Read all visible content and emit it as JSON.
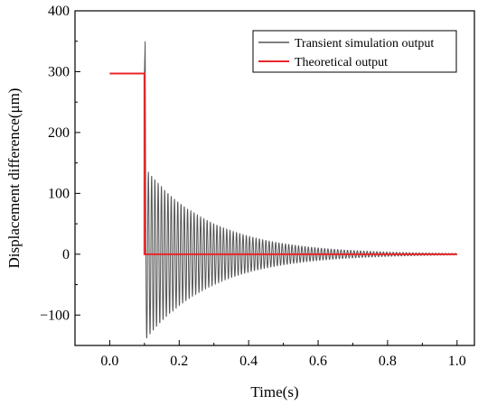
{
  "chart_data": {
    "type": "line",
    "title": "",
    "xlabel": "Time(s)",
    "ylabel": "Displacement difference(μm)",
    "xlim": [
      -0.1,
      1.05
    ],
    "ylim": [
      -150,
      400
    ],
    "xticks": [
      0.0,
      0.2,
      0.4,
      0.6,
      0.8,
      1.0
    ],
    "xtick_labels": [
      "0.0",
      "0.2",
      "0.4",
      "0.6",
      "0.8",
      "1.0"
    ],
    "yticks": [
      -100,
      0,
      100,
      200,
      300,
      400
    ],
    "ytick_labels": [
      "−100",
      "0",
      "100",
      "200",
      "300",
      "400"
    ],
    "grid": false,
    "legend_position": "top-right",
    "series": [
      {
        "name": "Transient simulation output",
        "color": "#555555",
        "model": {
          "initial_value": 297,
          "step_time": 0.1,
          "peak_value": 350,
          "oscillation_period": 0.0094,
          "initial_amplitude": 140,
          "decay_time_constant": 0.19,
          "end_time": 1.0
        }
      },
      {
        "name": "Theoretical output",
        "color": "#e8262a",
        "x": [
          0.0,
          0.1,
          0.1,
          1.0
        ],
        "y": [
          297,
          297,
          0,
          0
        ]
      }
    ]
  }
}
